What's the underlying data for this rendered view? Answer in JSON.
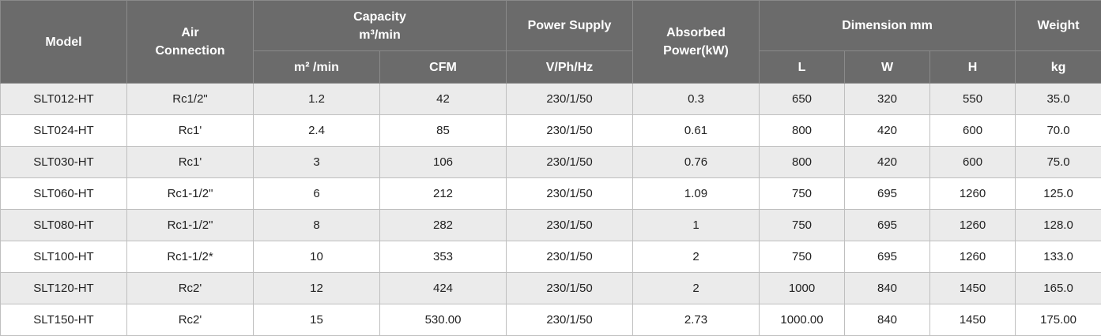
{
  "header": {
    "model": "Model",
    "air_connection": [
      "Air",
      "Connection"
    ],
    "capacity": [
      "Capacity",
      "m³/min"
    ],
    "power_supply": "Power Supply",
    "absorbed_power": [
      "Absorbed",
      "Power(kW)"
    ],
    "dimension": "Dimension mm",
    "weight": "Weight",
    "sub": {
      "capacity_m3": "m² /min",
      "capacity_cfm": "CFM",
      "power_units": "V/Ph/Hz",
      "dim_l": "L",
      "dim_w": "W",
      "dim_h": "H",
      "weight_unit": "kg"
    }
  },
  "rows": [
    [
      "SLT012-HT",
      "Rc1/2\"",
      "1.2",
      "42",
      "230/1/50",
      "0.3",
      "650",
      "320",
      "550",
      "35.0"
    ],
    [
      "SLT024-HT",
      "Rc1'",
      "2.4",
      "85",
      "230/1/50",
      "0.61",
      "800",
      "420",
      "600",
      "70.0"
    ],
    [
      "SLT030-HT",
      "Rc1'",
      "3",
      "106",
      "230/1/50",
      "0.76",
      "800",
      "420",
      "600",
      "75.0"
    ],
    [
      "SLT060-HT",
      "Rc1-1/2\"",
      "6",
      "212",
      "230/1/50",
      "1.09",
      "750",
      "695",
      "1260",
      "125.0"
    ],
    [
      "SLT080-HT",
      "Rc1-1/2\"",
      "8",
      "282",
      "230/1/50",
      "1",
      "750",
      "695",
      "1260",
      "128.0"
    ],
    [
      "SLT100-HT",
      "Rc1-1/2*",
      "10",
      "353",
      "230/1/50",
      "2",
      "750",
      "695",
      "1260",
      "133.0"
    ],
    [
      "SLT120-HT",
      "Rc2'",
      "12",
      "424",
      "230/1/50",
      "2",
      "1000",
      "840",
      "1450",
      "165.0"
    ],
    [
      "SLT150-HT",
      "Rc2'",
      "15",
      "530.00",
      "230/1/50",
      "2.73",
      "1000.00",
      "840",
      "1450",
      "175.00"
    ]
  ]
}
